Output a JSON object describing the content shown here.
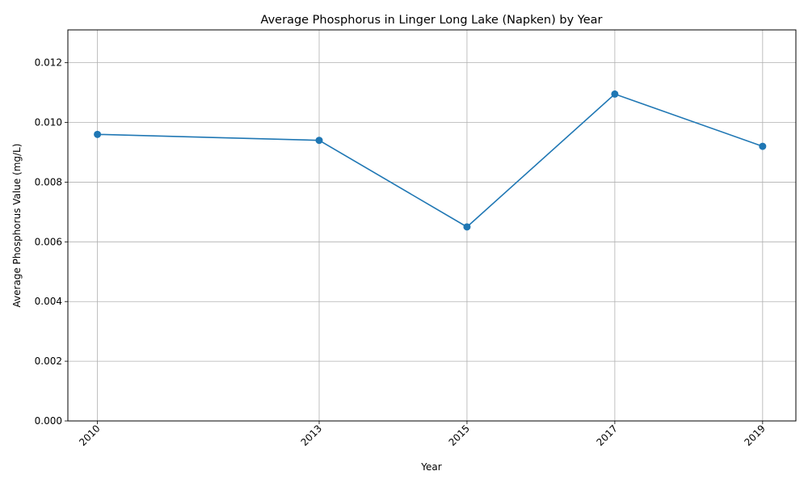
{
  "chart_data": {
    "type": "line",
    "title": "Average Phosphorus in Linger Long Lake (Napken) by Year",
    "xlabel": "Year",
    "ylabel": "Average Phosphorus Value (mg/L)",
    "x": [
      2010,
      2013,
      2015,
      2017,
      2019
    ],
    "x_tick_labels": [
      "2010",
      "2013",
      "2015",
      "2017",
      "2019"
    ],
    "series": [
      {
        "values": [
          0.0096,
          0.0094,
          0.0065,
          0.01095,
          0.0092
        ]
      }
    ],
    "xlim": [
      2009.6,
      2019.45
    ],
    "ylim": [
      0,
      0.0131
    ],
    "y_ticks": [
      0,
      0.002,
      0.004,
      0.006,
      0.008,
      0.01,
      0.012
    ],
    "y_tick_labels": [
      "0.000",
      "0.002",
      "0.004",
      "0.006",
      "0.008",
      "0.010",
      "0.012"
    ],
    "grid": true,
    "line_color": "#1f77b4",
    "grid_color": "#b0b0b0",
    "marker": "circle"
  }
}
